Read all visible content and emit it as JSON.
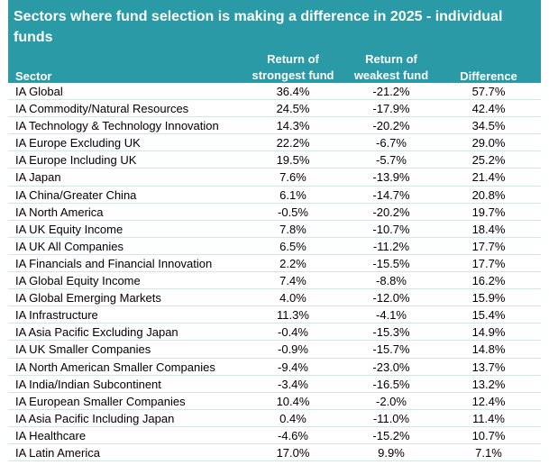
{
  "title": "Sectors where fund selection is making a difference in 2025 - individual funds",
  "columns": {
    "sector": "Sector",
    "strongest": "Return of strongest fund",
    "weakest": "Return of weakest fund",
    "difference": "Difference"
  },
  "rows": [
    {
      "sector": "IA Global",
      "strongest": "36.4%",
      "weakest": "-21.2%",
      "difference": "57.7%"
    },
    {
      "sector": "IA Commodity/Natural Resources",
      "strongest": "24.5%",
      "weakest": "-17.9%",
      "difference": "42.4%"
    },
    {
      "sector": "IA Technology & Technology Innovation",
      "strongest": "14.3%",
      "weakest": "-20.2%",
      "difference": "34.5%"
    },
    {
      "sector": "IA Europe Excluding UK",
      "strongest": "22.2%",
      "weakest": "-6.7%",
      "difference": "29.0%"
    },
    {
      "sector": "IA Europe Including UK",
      "strongest": "19.5%",
      "weakest": "-5.7%",
      "difference": "25.2%"
    },
    {
      "sector": "IA Japan",
      "strongest": "7.6%",
      "weakest": "-13.9%",
      "difference": "21.4%"
    },
    {
      "sector": "IA China/Greater China",
      "strongest": "6.1%",
      "weakest": "-14.7%",
      "difference": "20.8%"
    },
    {
      "sector": "IA North America",
      "strongest": "-0.5%",
      "weakest": "-20.2%",
      "difference": "19.7%"
    },
    {
      "sector": "IA UK Equity Income",
      "strongest": "7.8%",
      "weakest": "-10.7%",
      "difference": "18.4%"
    },
    {
      "sector": "IA UK All Companies",
      "strongest": "6.5%",
      "weakest": "-11.2%",
      "difference": "17.7%"
    },
    {
      "sector": "IA Financials and Financial Innovation",
      "strongest": "2.2%",
      "weakest": "-15.5%",
      "difference": "17.7%"
    },
    {
      "sector": "IA Global Equity Income",
      "strongest": "7.4%",
      "weakest": "-8.8%",
      "difference": "16.2%"
    },
    {
      "sector": "IA Global Emerging Markets",
      "strongest": "4.0%",
      "weakest": "-12.0%",
      "difference": "15.9%"
    },
    {
      "sector": "IA Infrastructure",
      "strongest": "11.3%",
      "weakest": "-4.1%",
      "difference": "15.4%"
    },
    {
      "sector": "IA Asia Pacific Excluding Japan",
      "strongest": "-0.4%",
      "weakest": "-15.3%",
      "difference": "14.9%"
    },
    {
      "sector": "IA UK Smaller Companies",
      "strongest": "-0.9%",
      "weakest": "-15.7%",
      "difference": "14.8%"
    },
    {
      "sector": "IA North American Smaller Companies",
      "strongest": "-9.4%",
      "weakest": "-23.0%",
      "difference": "13.7%"
    },
    {
      "sector": "IA India/Indian Subcontinent",
      "strongest": "-3.4%",
      "weakest": "-16.5%",
      "difference": "13.2%"
    },
    {
      "sector": "IA European Smaller Companies",
      "strongest": "10.4%",
      "weakest": "-2.0%",
      "difference": "12.4%"
    },
    {
      "sector": "IA Asia Pacific Including Japan",
      "strongest": "0.4%",
      "weakest": "-11.0%",
      "difference": "11.4%"
    },
    {
      "sector": "IA Healthcare",
      "strongest": "-4.6%",
      "weakest": "-15.2%",
      "difference": "10.7%"
    },
    {
      "sector": "IA Latin America",
      "strongest": "17.0%",
      "weakest": "9.9%",
      "difference": "7.1%"
    }
  ],
  "colors": {
    "header_bg": "#2a9aa6",
    "header_text": "#ffffff",
    "row_divider": "#cfe7e9"
  }
}
